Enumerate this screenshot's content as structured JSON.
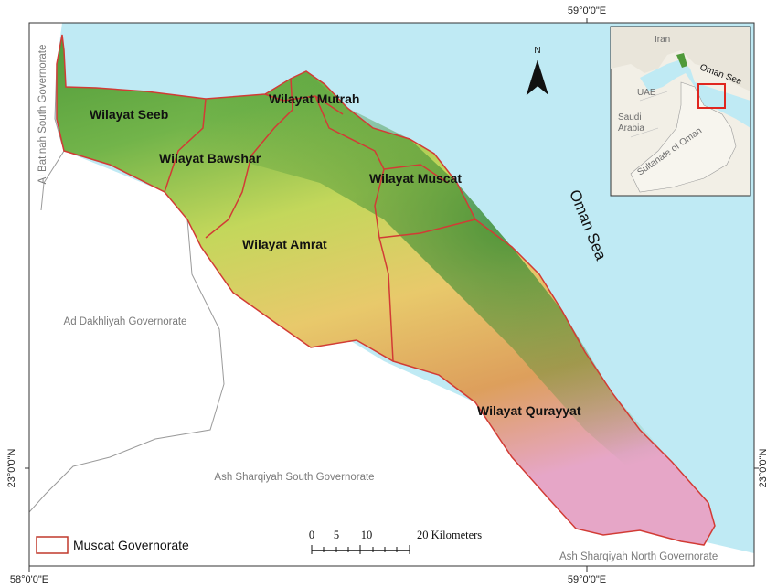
{
  "coordinates": {
    "top": "59°0'0\"E",
    "bottom_left": "58°0'0\"E",
    "bottom_right": "59°0'0\"E",
    "left": "23°0'0\"N",
    "right": "23°0'0\"N"
  },
  "wilayats": {
    "seeb": "Wilayat Seeb",
    "bawshar": "Wilayat Bawshar",
    "mutrah": "Wilayat Mutrah",
    "muscat": "Wilayat Muscat",
    "amrat": "Wilayat Amrat",
    "qurayyat": "Wilayat Qurayyat"
  },
  "governorates": {
    "al_batinah_south": "Al Batinah South Governorate",
    "ad_dakhliyah": "Ad Dakhliyah Governorate",
    "ash_sharqiyah_south": "Ash Sharqiyah South Governorate",
    "ash_sharqiyah_north": "Ash Sharqiyah North Governorate"
  },
  "sea_label": "Oman Sea",
  "north_label": "N",
  "inset": {
    "iran": "Iran",
    "uae": "UAE",
    "saudi_arabia_line1": "Saudi",
    "saudi_arabia_line2": "Arabia",
    "oman_sea": "Oman Sea",
    "sultanate": "Sultanate of Oman"
  },
  "scale_bar": {
    "labels": [
      "0",
      "5",
      "10",
      "20 Kilometers"
    ]
  },
  "legend": {
    "label": "Muscat Governorate",
    "swatch_color": "#ffffff",
    "border_color": "#c0392b"
  },
  "colors": {
    "sea": "#bfeaf4",
    "land_outside": "#ffffff",
    "boundary": "#d23b35",
    "low_elevation": "#4f9a3a",
    "mid_elevation": "#c3d75b",
    "high_elevation": "#e0a963",
    "peak_elevation": "#e6a6c7"
  }
}
